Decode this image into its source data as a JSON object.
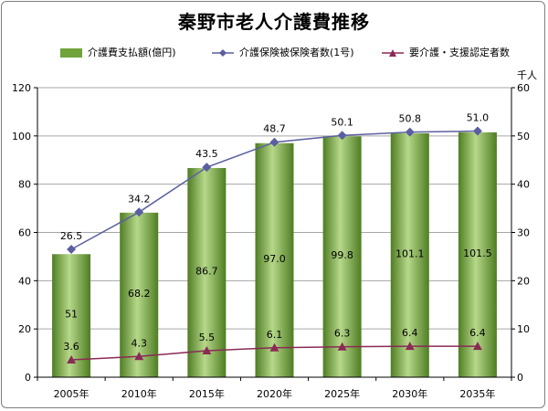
{
  "chart_data": {
    "title": "秦野市老人介護費推移",
    "type": "bar+line",
    "categories": [
      "2005年",
      "2010年",
      "2015年",
      "2020年",
      "2025年",
      "2030年",
      "2035年"
    ],
    "series": [
      {
        "name": "介護費支払額(億円)",
        "type": "bar",
        "axis": "left",
        "values": [
          51,
          68.2,
          86.7,
          97.0,
          99.8,
          101.1,
          101.5
        ],
        "labels": [
          "51",
          "68.2",
          "86.7",
          "97.0",
          "99.8",
          "101.1",
          "101.5"
        ],
        "color": "#70a33a"
      },
      {
        "name": "介護保険被保険者数(1号)",
        "type": "line",
        "axis": "right",
        "values": [
          26.5,
          34.2,
          43.5,
          48.7,
          50.1,
          50.8,
          51.0
        ],
        "labels": [
          "26.5",
          "34.2",
          "43.5",
          "48.7",
          "50.1",
          "50.8",
          "51.0"
        ],
        "color": "#5b5fa0"
      },
      {
        "name": "要介護・支援認定者数",
        "type": "line",
        "axis": "right",
        "values": [
          3.6,
          4.3,
          5.5,
          6.1,
          6.3,
          6.4,
          6.4
        ],
        "labels": [
          "3.6",
          "4.3",
          "5.5",
          "6.1",
          "6.3",
          "6.4",
          "6.4"
        ],
        "color": "#8b2a55"
      }
    ],
    "y_left": {
      "min": 0,
      "max": 120,
      "ticks": [
        "0",
        "20",
        "40",
        "60",
        "80",
        "100",
        "120"
      ]
    },
    "y_right": {
      "min": 0,
      "max": 60,
      "ticks": [
        "0",
        "10",
        "20",
        "30",
        "40",
        "50",
        "60"
      ],
      "unit": "千人"
    },
    "grid": true,
    "legend_position": "top"
  }
}
